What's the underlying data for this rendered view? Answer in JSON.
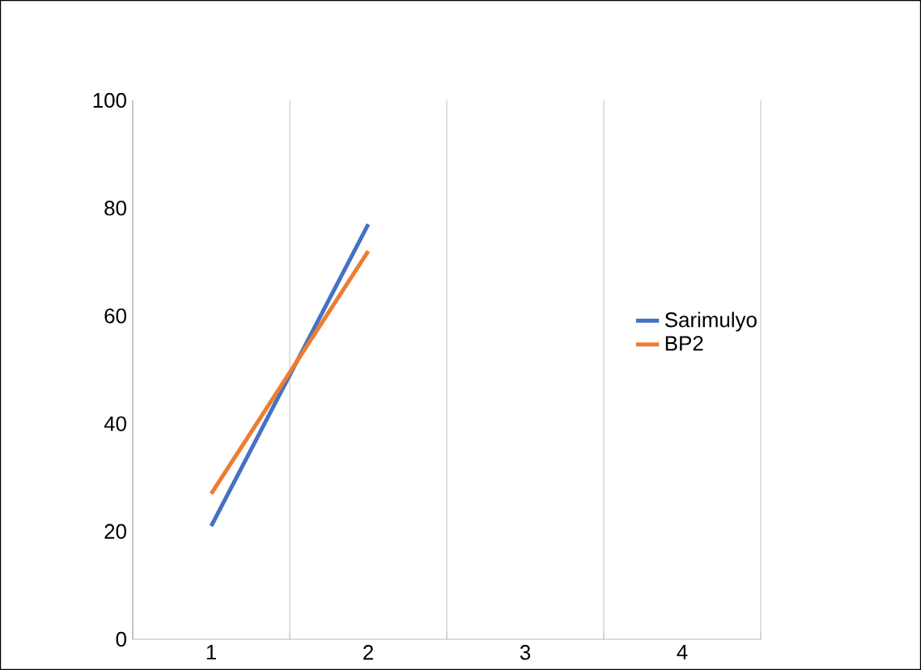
{
  "chart_data": {
    "type": "line",
    "categories": [
      "1",
      "2",
      "3",
      "4"
    ],
    "series": [
      {
        "name": "Sarimulyo",
        "color": "#4472c4",
        "values": [
          21,
          77,
          null,
          null
        ]
      },
      {
        "name": "BP2",
        "color": "#ed7d31",
        "values": [
          27,
          72,
          null,
          null
        ]
      }
    ],
    "ylim": [
      0,
      100
    ],
    "yticks": [
      0,
      20,
      40,
      60,
      80,
      100
    ],
    "grid": "x",
    "legend": "right",
    "marker": "none",
    "line_style": "solid"
  }
}
